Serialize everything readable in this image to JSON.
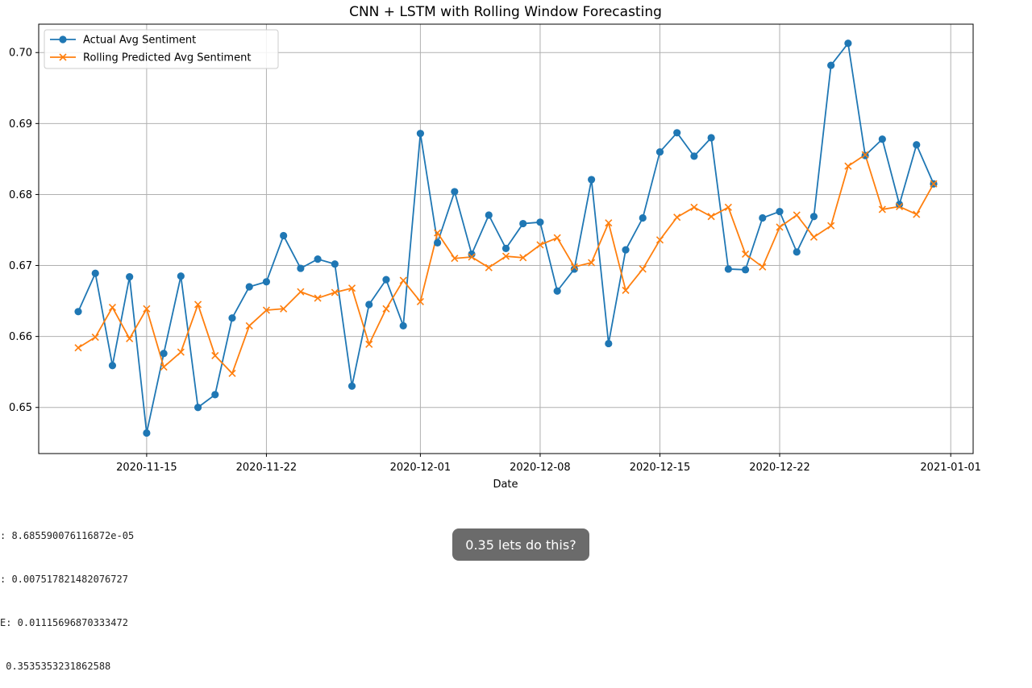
{
  "chart_data": {
    "type": "line",
    "title": "CNN + LSTM with Rolling Window Forecasting",
    "xlabel": "Date",
    "ylabel": "",
    "x_ticks": [
      "2020-11-15",
      "2020-11-22",
      "2020-12-01",
      "2020-12-08",
      "2020-12-15",
      "2020-12-22",
      "2021-01-01"
    ],
    "y_ticks": [
      "0.65",
      "0.66",
      "0.67",
      "0.68",
      "0.69",
      "0.70"
    ],
    "x": [
      "2020-11-11",
      "2020-11-12",
      "2020-11-13",
      "2020-11-14",
      "2020-11-15",
      "2020-11-16",
      "2020-11-17",
      "2020-11-18",
      "2020-11-19",
      "2020-11-20",
      "2020-11-21",
      "2020-11-22",
      "2020-11-23",
      "2020-11-24",
      "2020-11-25",
      "2020-11-26",
      "2020-11-27",
      "2020-11-28",
      "2020-11-29",
      "2020-11-30",
      "2020-12-01",
      "2020-12-02",
      "2020-12-03",
      "2020-12-04",
      "2020-12-05",
      "2020-12-06",
      "2020-12-07",
      "2020-12-08",
      "2020-12-09",
      "2020-12-10",
      "2020-12-11",
      "2020-12-12",
      "2020-12-13",
      "2020-12-14",
      "2020-12-15",
      "2020-12-16",
      "2020-12-17",
      "2020-12-18",
      "2020-12-19",
      "2020-12-20",
      "2020-12-21",
      "2020-12-22",
      "2020-12-23",
      "2020-12-24",
      "2020-12-25",
      "2020-12-26",
      "2020-12-27",
      "2020-12-28",
      "2020-12-29",
      "2020-12-30",
      "2020-12-31"
    ],
    "series": [
      {
        "name": "Actual Avg Sentiment",
        "color": "#1f77b4",
        "marker": "circle",
        "values": [
          0.6635,
          0.6689,
          0.6559,
          0.6684,
          0.6464,
          0.6576,
          0.6685,
          0.65,
          0.6518,
          0.6626,
          0.667,
          0.6677,
          0.6742,
          0.6696,
          0.6709,
          0.6702,
          0.653,
          0.6645,
          0.668,
          0.6615,
          0.6886,
          0.6732,
          0.6804,
          0.6716,
          0.6771,
          0.6724,
          0.6759,
          0.6761,
          0.6664,
          0.6695,
          0.6821,
          0.659,
          0.6722,
          0.6767,
          0.686,
          0.6887,
          0.6854,
          0.688,
          0.6695,
          0.6694,
          0.6767,
          0.6776,
          0.6719,
          0.6769,
          0.6982,
          0.7013,
          0.6855,
          0.6878,
          0.6786,
          0.687,
          0.6815
        ]
      },
      {
        "name": "Rolling Predicted Avg Sentiment",
        "color": "#ff7f0e",
        "marker": "x",
        "values": [
          0.6584,
          0.6599,
          0.6641,
          0.6597,
          0.6639,
          0.6557,
          0.6578,
          0.6645,
          0.6573,
          0.6548,
          0.6615,
          0.6637,
          0.6639,
          0.6663,
          0.6654,
          0.6662,
          0.6668,
          0.6589,
          0.6639,
          0.6679,
          0.6649,
          0.6746,
          0.671,
          0.6712,
          0.6697,
          0.6713,
          0.6711,
          0.6729,
          0.6739,
          0.6698,
          0.6704,
          0.676,
          0.6665,
          0.6695,
          0.6736,
          0.6768,
          0.6782,
          0.6769,
          0.6782,
          0.6716,
          0.6698,
          0.6754,
          0.6771,
          0.674,
          0.6756,
          0.684,
          0.6856,
          0.6779,
          0.6783,
          0.6772,
          0.6815
        ]
      }
    ],
    "ylim": [
      0.6435,
      0.704
    ],
    "grid": true,
    "legend": "top-left"
  },
  "metrics": [
    ": 8.685590076116872e-05",
    ": 0.007517821482076727",
    "E: 0.01115696870333472",
    " 0.3535353231862588"
  ],
  "tooltip": "0.35 lets do this?"
}
